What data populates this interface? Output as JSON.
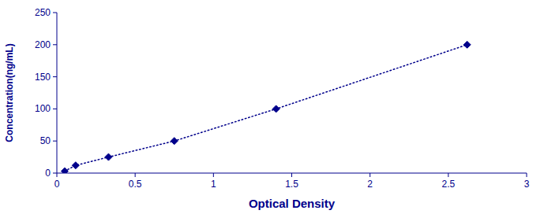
{
  "chart_data": {
    "type": "line",
    "xlabel": "Optical Density",
    "ylabel": "Concentration(ng/mL)",
    "x": [
      0.05,
      0.12,
      0.33,
      0.75,
      1.4,
      2.62
    ],
    "values": [
      3,
      12,
      25,
      50,
      100,
      200
    ],
    "color": "#00008B",
    "marker": "diamond",
    "line_style": "dotted",
    "xlim": [
      0,
      3
    ],
    "ylim": [
      0,
      250
    ],
    "xticks": [
      0,
      0.5,
      1,
      1.5,
      2,
      2.5,
      3
    ],
    "yticks": [
      0,
      50,
      100,
      150,
      200,
      250
    ],
    "grid": false
  }
}
